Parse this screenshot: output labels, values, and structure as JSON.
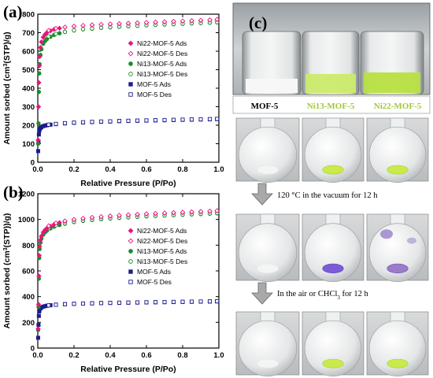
{
  "panels": {
    "a": "(a)",
    "b": "(b)",
    "c": "(c)"
  },
  "colors": {
    "ni22": "#e8157c",
    "ni13": "#1a8c2a",
    "mof5": "#1c1c8c",
    "green_powder": "#b8e03a",
    "purple_powder": "#6a48c8",
    "arrow_fill": "#a9a9a9"
  },
  "photos": {
    "vial_labels": [
      "MOF-5",
      "Ni13-MOF-5",
      "Ni22-MOF-5"
    ],
    "vial_label_colors": [
      "#111111",
      "#9fc83b",
      "#9fc83b"
    ],
    "step1": "120 °C in the vacuum for 12 h",
    "step2": "In the air or CHCl3 for 12 h",
    "row_powders": [
      [
        "white",
        "green",
        "green"
      ],
      [
        "white",
        "purple",
        "purple-mixed"
      ],
      [
        "white",
        "green",
        "green"
      ]
    ]
  },
  "chart_data": [
    {
      "type": "scatter",
      "panel": "(a)",
      "xlabel": "Relative Pressure (P/Po)",
      "ylabel": "Amount sorbed (cm3(STP)/g)",
      "xlim": [
        0,
        1.0
      ],
      "ylim": [
        0,
        800
      ],
      "x_ticks": [
        "0.0",
        "0.2",
        "0.4",
        "0.6",
        "0.8",
        "1.0"
      ],
      "y_ticks": [
        "0",
        "100",
        "200",
        "300",
        "400",
        "500",
        "600",
        "700",
        "800"
      ],
      "legend_position": "right",
      "series": [
        {
          "name": "Ni22-MOF-5 Ads",
          "marker": "diamond",
          "filled": true,
          "color": "#e8157c",
          "x": [
            0.002,
            0.004,
            0.006,
            0.008,
            0.01,
            0.015,
            0.02,
            0.03,
            0.04,
            0.05,
            0.07,
            0.09,
            0.12,
            0.15,
            0.2,
            0.25,
            0.3,
            0.35,
            0.4,
            0.45,
            0.5,
            0.55,
            0.6,
            0.65,
            0.7,
            0.75,
            0.8,
            0.85,
            0.9,
            0.95,
            0.99
          ],
          "y": [
            120,
            300,
            430,
            520,
            570,
            620,
            650,
            675,
            690,
            700,
            710,
            718,
            724,
            729,
            734,
            738,
            741,
            744,
            746,
            748,
            750,
            752,
            754,
            756,
            758,
            760,
            762,
            764,
            766,
            768,
            770
          ]
        },
        {
          "name": "Ni22-MOF-5 Des",
          "marker": "diamond",
          "filled": false,
          "color": "#e8157c",
          "x": [
            0.99,
            0.95,
            0.9,
            0.85,
            0.8,
            0.75,
            0.7,
            0.65,
            0.6,
            0.55,
            0.5,
            0.45,
            0.4,
            0.35,
            0.3,
            0.25,
            0.2,
            0.15,
            0.1,
            0.06
          ],
          "y": [
            772,
            769,
            767,
            765,
            763,
            761,
            759,
            757,
            755,
            753,
            751,
            749,
            747,
            745,
            742,
            739,
            735,
            730,
            723,
            712
          ]
        },
        {
          "name": "Ni13-MOF-5 Ads",
          "marker": "circle",
          "filled": true,
          "color": "#1a8c2a",
          "x": [
            0.002,
            0.004,
            0.006,
            0.008,
            0.01,
            0.015,
            0.02,
            0.03,
            0.04,
            0.05,
            0.07,
            0.09,
            0.12,
            0.15,
            0.2,
            0.25,
            0.3,
            0.35,
            0.4,
            0.45,
            0.5,
            0.55,
            0.6,
            0.65,
            0.7,
            0.75,
            0.8,
            0.85,
            0.9,
            0.95,
            0.99
          ],
          "y": [
            100,
            210,
            380,
            480,
            530,
            580,
            610,
            640,
            655,
            665,
            678,
            688,
            697,
            704,
            712,
            718,
            722,
            726,
            729,
            732,
            735,
            737,
            740,
            742,
            744,
            746,
            748,
            750,
            752,
            754,
            756
          ]
        },
        {
          "name": "Ni13-MOF-5 Des",
          "marker": "circle",
          "filled": false,
          "color": "#1a8c2a",
          "x": [
            0.99,
            0.95,
            0.9,
            0.85,
            0.8,
            0.75,
            0.7,
            0.65,
            0.6,
            0.55,
            0.5,
            0.45,
            0.4,
            0.35,
            0.3,
            0.25,
            0.2,
            0.15,
            0.1,
            0.06
          ],
          "y": [
            757,
            755,
            753,
            751,
            749,
            747,
            745,
            743,
            741,
            738,
            736,
            733,
            730,
            727,
            723,
            719,
            713,
            705,
            694,
            680
          ]
        },
        {
          "name": "MOF-5 Ads",
          "marker": "square",
          "filled": true,
          "color": "#1c1c8c",
          "x": [
            0.002,
            0.004,
            0.006,
            0.008,
            0.01,
            0.015,
            0.02,
            0.03,
            0.04,
            0.05,
            0.07,
            0.1,
            0.15,
            0.2,
            0.25,
            0.3,
            0.35,
            0.4,
            0.45,
            0.5,
            0.55,
            0.6,
            0.65,
            0.7,
            0.75,
            0.8,
            0.85,
            0.9,
            0.95,
            0.99
          ],
          "y": [
            60,
            110,
            150,
            170,
            178,
            185,
            190,
            195,
            198,
            200,
            203,
            206,
            210,
            213,
            215,
            217,
            219,
            220,
            222,
            223,
            224,
            225,
            226,
            227,
            228,
            229,
            230,
            231,
            232,
            233
          ]
        },
        {
          "name": "MOF-5 Des",
          "marker": "square",
          "filled": false,
          "color": "#1c1c8c",
          "x": [
            0.99,
            0.95,
            0.9,
            0.85,
            0.8,
            0.75,
            0.7,
            0.65,
            0.6,
            0.55,
            0.5,
            0.45,
            0.4,
            0.35,
            0.3,
            0.25,
            0.2,
            0.15,
            0.1,
            0.06
          ],
          "y": [
            234,
            233,
            232,
            231,
            230,
            229,
            228,
            227,
            226,
            225,
            224,
            223,
            221,
            220,
            218,
            216,
            214,
            211,
            207,
            203
          ]
        }
      ]
    },
    {
      "type": "scatter",
      "panel": "(b)",
      "xlabel": "Relative Pressure (P/Po)",
      "ylabel": "Amount sorbed (cm3(STP))/g)",
      "xlim": [
        0,
        1.0
      ],
      "ylim": [
        0,
        1200
      ],
      "x_ticks": [
        "0.0",
        "0.2",
        "0.4",
        "0.6",
        "0.8",
        "1.0"
      ],
      "y_ticks": [
        "0",
        "200",
        "400",
        "600",
        "800",
        "1000",
        "1200"
      ],
      "legend_position": "right",
      "series": [
        {
          "name": "Ni22-MOF-5 Ads",
          "marker": "diamond",
          "filled": true,
          "color": "#e8157c",
          "x": [
            0.002,
            0.004,
            0.006,
            0.008,
            0.01,
            0.015,
            0.02,
            0.03,
            0.04,
            0.05,
            0.07,
            0.09,
            0.12,
            0.15,
            0.2,
            0.25,
            0.3,
            0.35,
            0.4,
            0.45,
            0.5,
            0.55,
            0.6,
            0.65,
            0.7,
            0.75,
            0.8,
            0.85,
            0.9,
            0.95,
            0.99
          ],
          "y": [
            150,
            340,
            560,
            720,
            790,
            840,
            870,
            900,
            918,
            930,
            948,
            962,
            975,
            985,
            998,
            1007,
            1014,
            1020,
            1025,
            1030,
            1034,
            1038,
            1042,
            1045,
            1048,
            1051,
            1054,
            1057,
            1060,
            1063,
            1066
          ]
        },
        {
          "name": "Ni22-MOF-5 Des",
          "marker": "diamond",
          "filled": false,
          "color": "#e8157c",
          "x": [
            0.99,
            0.95,
            0.9,
            0.85,
            0.8,
            0.75,
            0.7,
            0.65,
            0.6,
            0.55,
            0.5,
            0.45,
            0.4,
            0.35,
            0.3,
            0.25,
            0.2,
            0.15,
            0.1,
            0.06
          ],
          "y": [
            1068,
            1065,
            1062,
            1059,
            1056,
            1053,
            1050,
            1047,
            1044,
            1040,
            1036,
            1032,
            1027,
            1022,
            1016,
            1009,
            1000,
            988,
            972,
            950
          ]
        },
        {
          "name": "Ni13-MOF-5 Ads",
          "marker": "circle",
          "filled": true,
          "color": "#1a8c2a",
          "x": [
            0.002,
            0.004,
            0.006,
            0.008,
            0.01,
            0.015,
            0.02,
            0.03,
            0.04,
            0.05,
            0.07,
            0.09,
            0.12,
            0.15,
            0.2,
            0.25,
            0.3,
            0.35,
            0.4,
            0.45,
            0.5,
            0.55,
            0.6,
            0.65,
            0.7,
            0.75,
            0.8,
            0.85,
            0.9,
            0.95,
            0.99
          ],
          "y": [
            140,
            320,
            540,
            700,
            770,
            820,
            852,
            882,
            900,
            912,
            930,
            944,
            957,
            967,
            980,
            989,
            996,
            1002,
            1007,
            1012,
            1016,
            1020,
            1024,
            1027,
            1030,
            1033,
            1036,
            1039,
            1042,
            1045,
            1048
          ]
        },
        {
          "name": "Ni13-MOF-5 Des",
          "marker": "circle",
          "filled": false,
          "color": "#1a8c2a",
          "x": [
            0.99,
            0.95,
            0.9,
            0.85,
            0.8,
            0.75,
            0.7,
            0.65,
            0.6,
            0.55,
            0.5,
            0.45,
            0.4,
            0.35,
            0.3,
            0.25,
            0.2,
            0.15,
            0.1,
            0.06
          ],
          "y": [
            1050,
            1047,
            1044,
            1041,
            1038,
            1035,
            1032,
            1029,
            1026,
            1022,
            1018,
            1014,
            1009,
            1004,
            998,
            991,
            982,
            970,
            954,
            932
          ]
        },
        {
          "name": "MOF-5 Ads",
          "marker": "square",
          "filled": true,
          "color": "#1c1c8c",
          "x": [
            0.002,
            0.004,
            0.006,
            0.008,
            0.01,
            0.015,
            0.02,
            0.03,
            0.04,
            0.05,
            0.07,
            0.1,
            0.15,
            0.2,
            0.25,
            0.3,
            0.35,
            0.4,
            0.45,
            0.5,
            0.55,
            0.6,
            0.65,
            0.7,
            0.75,
            0.8,
            0.85,
            0.9,
            0.95,
            0.99
          ],
          "y": [
            80,
            180,
            250,
            285,
            300,
            310,
            316,
            322,
            326,
            329,
            333,
            337,
            341,
            344,
            346,
            348,
            350,
            351,
            352,
            353,
            354,
            355,
            356,
            357,
            358,
            359,
            360,
            361,
            362,
            363
          ]
        },
        {
          "name": "MOF-5 Des",
          "marker": "square",
          "filled": false,
          "color": "#1c1c8c",
          "x": [
            0.99,
            0.95,
            0.9,
            0.85,
            0.8,
            0.75,
            0.7,
            0.65,
            0.6,
            0.55,
            0.5,
            0.45,
            0.4,
            0.35,
            0.3,
            0.25,
            0.2,
            0.15,
            0.1,
            0.06
          ],
          "y": [
            364,
            363,
            362,
            361,
            360,
            359,
            358,
            357,
            356,
            355,
            354,
            353,
            352,
            350,
            348,
            346,
            344,
            341,
            337,
            332
          ]
        }
      ]
    }
  ]
}
